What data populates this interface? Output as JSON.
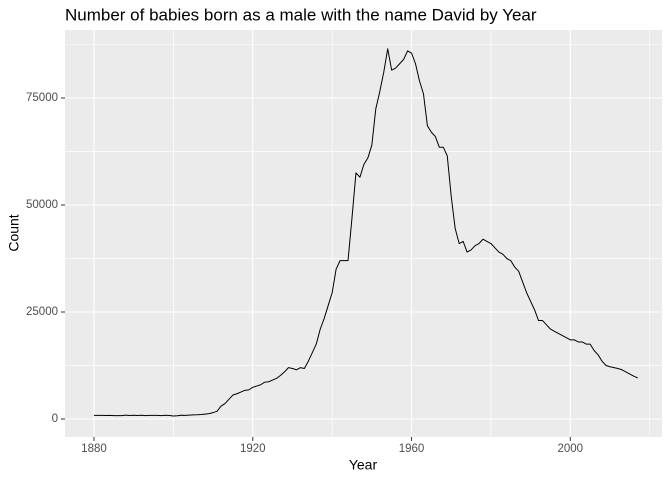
{
  "chart_data": {
    "type": "line",
    "title": "Number of babies born as a male with the name David by Year",
    "xlabel": "Year",
    "ylabel": "Count",
    "x": [
      1880,
      1881,
      1882,
      1883,
      1884,
      1885,
      1886,
      1887,
      1888,
      1889,
      1890,
      1891,
      1892,
      1893,
      1894,
      1895,
      1896,
      1897,
      1898,
      1899,
      1900,
      1901,
      1902,
      1903,
      1904,
      1905,
      1906,
      1907,
      1908,
      1909,
      1910,
      1911,
      1912,
      1913,
      1914,
      1915,
      1916,
      1917,
      1918,
      1919,
      1920,
      1921,
      1922,
      1923,
      1924,
      1925,
      1926,
      1927,
      1928,
      1929,
      1930,
      1931,
      1932,
      1933,
      1934,
      1935,
      1936,
      1937,
      1938,
      1939,
      1940,
      1941,
      1942,
      1943,
      1944,
      1945,
      1946,
      1947,
      1948,
      1949,
      1950,
      1951,
      1952,
      1953,
      1954,
      1955,
      1956,
      1957,
      1958,
      1959,
      1960,
      1961,
      1962,
      1963,
      1964,
      1965,
      1966,
      1967,
      1968,
      1969,
      1970,
      1971,
      1972,
      1973,
      1974,
      1975,
      1976,
      1977,
      1978,
      1979,
      1980,
      1981,
      1982,
      1983,
      1984,
      1985,
      1986,
      1987,
      1988,
      1989,
      1990,
      1991,
      1992,
      1993,
      1994,
      1995,
      1996,
      1997,
      1998,
      1999,
      2000,
      2001,
      2002,
      2003,
      2004,
      2005,
      2006,
      2007,
      2008,
      2009,
      2010,
      2011,
      2012,
      2013,
      2014,
      2015,
      2016,
      2017
    ],
    "series": [
      {
        "name": "David",
        "color": "#000000",
        "values": [
          850,
          840,
          850,
          830,
          860,
          800,
          780,
          790,
          900,
          830,
          880,
          810,
          880,
          800,
          860,
          850,
          850,
          800,
          880,
          820,
          700,
          750,
          880,
          850,
          900,
          950,
          980,
          1050,
          1150,
          1250,
          1500,
          1800,
          3000,
          3600,
          4600,
          5600,
          5900,
          6300,
          6700,
          6800,
          7400,
          7700,
          8000,
          8600,
          8700,
          9100,
          9500,
          10200,
          11000,
          12000,
          11800,
          11500,
          12000,
          11800,
          13500,
          15500,
          17500,
          21000,
          23500,
          26500,
          29500,
          35000,
          37000,
          37000,
          37000,
          47000,
          57500,
          56500,
          59500,
          61000,
          64000,
          72500,
          76500,
          81000,
          86500,
          81500,
          82000,
          83000,
          84000,
          86000,
          85500,
          83000,
          79000,
          76000,
          68500,
          67000,
          66000,
          63500,
          63500,
          61500,
          52000,
          44500,
          41000,
          41500,
          39000,
          39500,
          40500,
          41000,
          42000,
          41500,
          41000,
          40000,
          39000,
          38500,
          37500,
          37000,
          35500,
          34500,
          32000,
          29500,
          27500,
          25500,
          23000,
          23000,
          22000,
          21000,
          20500,
          20000,
          19500,
          19000,
          18500,
          18500,
          18000,
          18000,
          17500,
          17500,
          16000,
          15000,
          13500,
          12500,
          12200,
          12000,
          11800,
          11500,
          11000,
          10500,
          10000,
          9600
        ]
      }
    ],
    "xlim": [
      1872.7,
      2023.1
    ],
    "ylim": [
      -4206,
      90888
    ],
    "xticks": [
      1880,
      1920,
      1960,
      2000
    ],
    "yticks": [
      0,
      25000,
      50000,
      75000
    ],
    "grid": true
  }
}
